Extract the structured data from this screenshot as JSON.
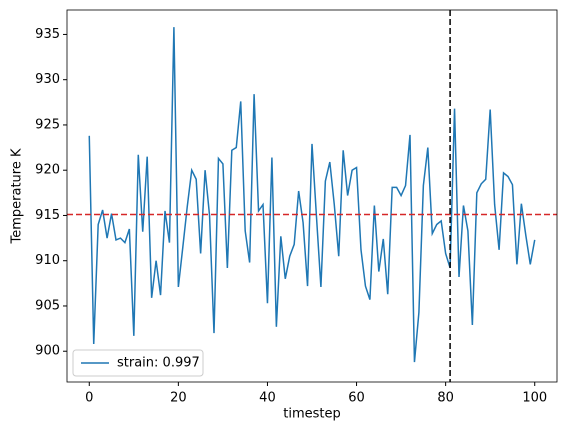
{
  "chart_data": {
    "type": "line",
    "xlabel": "timestep",
    "ylabel": "Temperature K",
    "x": [
      0,
      1,
      2,
      3,
      4,
      5,
      6,
      7,
      8,
      9,
      10,
      11,
      12,
      13,
      14,
      15,
      16,
      17,
      18,
      19,
      20,
      21,
      22,
      23,
      24,
      25,
      26,
      27,
      28,
      29,
      30,
      31,
      32,
      33,
      34,
      35,
      36,
      37,
      38,
      39,
      40,
      41,
      42,
      43,
      44,
      45,
      46,
      47,
      48,
      49,
      50,
      51,
      52,
      53,
      54,
      55,
      56,
      57,
      58,
      59,
      60,
      61,
      62,
      63,
      64,
      65,
      66,
      67,
      68,
      69,
      70,
      71,
      72,
      73,
      74,
      75,
      76,
      77,
      78,
      79,
      80,
      81,
      82,
      83,
      84,
      85,
      86,
      87,
      88,
      89,
      90,
      91,
      92,
      93,
      94,
      95,
      96,
      97,
      98,
      99,
      100
    ],
    "series": [
      {
        "name": "strain: 0.997",
        "color": "#1f77b4",
        "values": [
          923.8,
          900.8,
          914,
          915.6,
          912.5,
          915.2,
          912.3,
          912.5,
          912,
          913.5,
          901.7,
          921.7,
          913.2,
          921.5,
          905.9,
          910,
          906.2,
          915.5,
          912,
          935.8,
          907.1,
          911.5,
          916,
          920,
          919,
          910.8,
          920,
          915,
          902,
          921.3,
          920.7,
          909.2,
          922.2,
          922.5,
          927.6,
          913.3,
          909.8,
          928.4,
          915.5,
          916.2,
          905.3,
          921.4,
          902.7,
          912.7,
          908,
          910.5,
          911.8,
          917.7,
          914.2,
          907.2,
          922.9,
          914.9,
          907.1,
          918.8,
          920.9,
          916.2,
          910.5,
          922.2,
          917.2,
          920,
          920.3,
          911.2,
          907.2,
          905.7,
          916.1,
          908.8,
          912.4,
          906.3,
          918.1,
          918.1,
          917.2,
          918.3,
          923.9,
          898.8,
          904.3,
          918.3,
          922.5,
          913,
          914,
          914.4,
          910.8,
          909.2,
          926.8,
          908.2,
          916.1,
          913.3,
          902.9,
          917.5,
          918.5,
          919,
          926.7,
          916.2,
          911.2,
          919.7,
          919.3,
          918.4,
          909.6,
          916.3,
          912.8,
          909.6,
          912.3
        ]
      }
    ],
    "hline": {
      "value": 915.1,
      "color": "#d62728"
    },
    "vline": {
      "value": 81,
      "color": "#000000"
    },
    "xlim": [
      -5,
      105
    ],
    "ylim": [
      896.6,
      937.7
    ],
    "xticks": [
      0,
      20,
      40,
      60,
      80,
      100
    ],
    "yticks": [
      900,
      905,
      910,
      915,
      920,
      925,
      930,
      935
    ],
    "legend": "lower left"
  }
}
